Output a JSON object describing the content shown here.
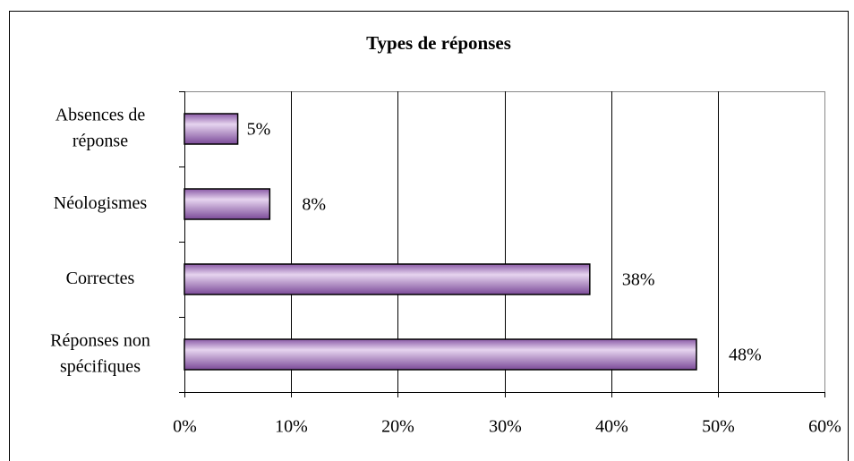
{
  "chart_data": {
    "type": "bar",
    "orientation": "horizontal",
    "title": "Types de réponses",
    "categories": [
      [
        "Absences de",
        "réponse"
      ],
      [
        "Néologismes"
      ],
      [
        "Correctes"
      ],
      [
        "Réponses non",
        "spécifiques"
      ]
    ],
    "values": [
      5,
      8,
      38,
      48
    ],
    "value_labels": [
      "5%",
      "8%",
      "38%",
      "48%"
    ],
    "color": "#a77cc0",
    "xlim": [
      0,
      60
    ],
    "xticks": [
      {
        "value": 0,
        "label": "0%"
      },
      {
        "value": 10,
        "label": "10%"
      },
      {
        "value": 20,
        "label": "20%"
      },
      {
        "value": 30,
        "label": "30%"
      },
      {
        "value": 40,
        "label": "40%"
      },
      {
        "value": 50,
        "label": "50%"
      },
      {
        "value": 60,
        "label": "60%"
      }
    ],
    "grid": true
  }
}
